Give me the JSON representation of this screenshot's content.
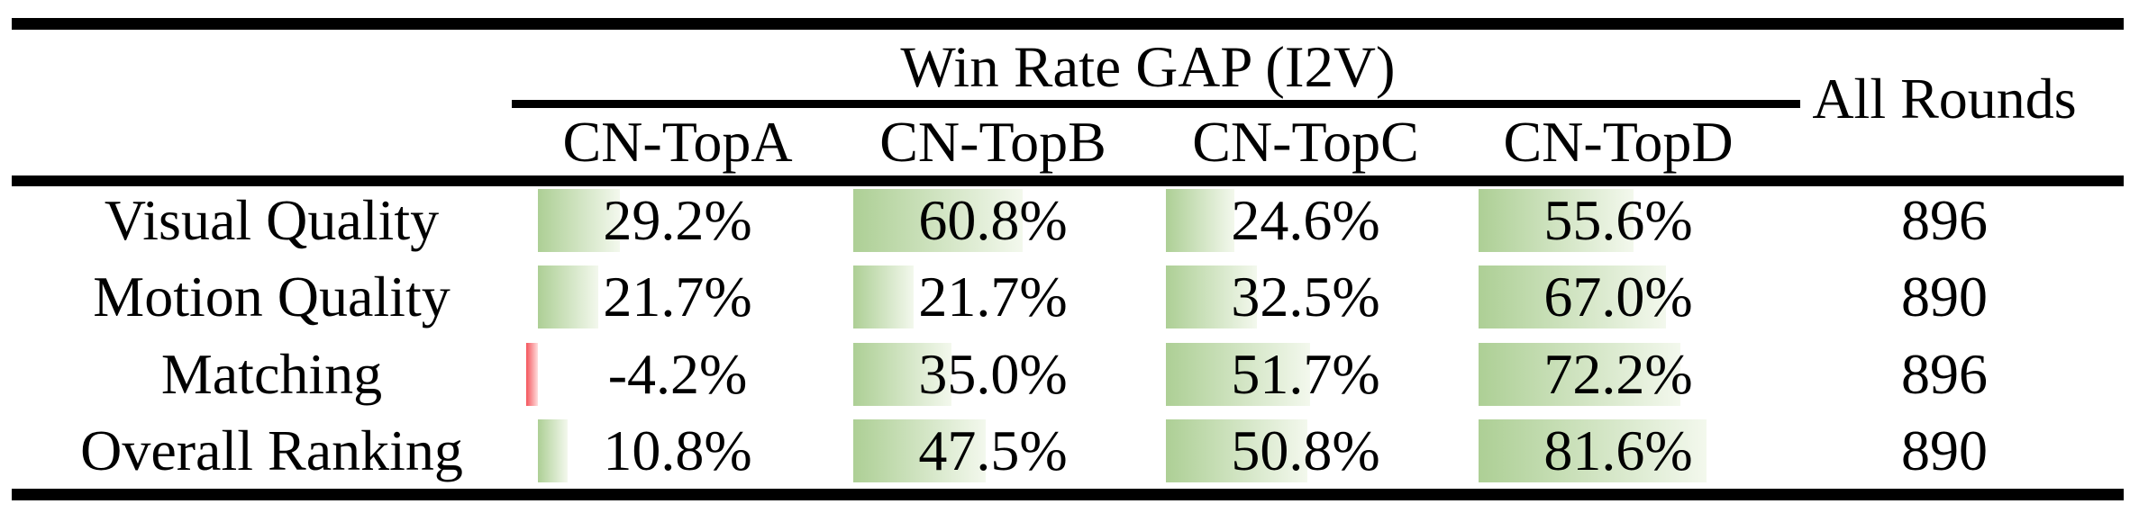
{
  "table": {
    "title": "Win Rate GAP (I2V)",
    "all_rounds_header": "All Rounds",
    "columns": [
      "CN-TopA",
      "CN-TopB",
      "CN-TopC",
      "CN-TopD"
    ],
    "rows": [
      {
        "label": "Visual Quality",
        "values": [
          "29.2%",
          "60.8%",
          "24.6%",
          "55.6%"
        ],
        "all_rounds": "896"
      },
      {
        "label": "Motion Quality",
        "values": [
          "21.7%",
          "21.7%",
          "32.5%",
          "67.0%"
        ],
        "all_rounds": "890"
      },
      {
        "label": "Matching",
        "values": [
          "-4.2%",
          "35.0%",
          "51.7%",
          "72.2%"
        ],
        "all_rounds": "896"
      },
      {
        "label": "Overall Ranking",
        "values": [
          "10.8%",
          "47.5%",
          "50.8%",
          "81.6%"
        ],
        "all_rounds": "890"
      }
    ],
    "bar_colors": {
      "positive_start": "#adcf95",
      "positive_end": "#f3f8ed",
      "negative_start": "#f4555c",
      "negative_end": "#ffdede"
    }
  },
  "chart_data": {
    "type": "table",
    "title": "Win Rate GAP (I2V)",
    "columns": [
      "CN-TopA",
      "CN-TopB",
      "CN-TopC",
      "CN-TopD",
      "All Rounds"
    ],
    "row_labels": [
      "Visual Quality",
      "Motion Quality",
      "Matching",
      "Overall Ranking"
    ],
    "rows": [
      {
        "label": "Visual Quality",
        "win_rate_gap_pct": [
          29.2,
          60.8,
          24.6,
          55.6
        ],
        "all_rounds": 896
      },
      {
        "label": "Motion Quality",
        "win_rate_gap_pct": [
          21.7,
          21.7,
          32.5,
          67.0
        ],
        "all_rounds": 890
      },
      {
        "label": "Matching",
        "win_rate_gap_pct": [
          -4.2,
          35.0,
          51.7,
          72.2
        ],
        "all_rounds": 896
      },
      {
        "label": "Overall Ranking",
        "win_rate_gap_pct": [
          10.8,
          47.5,
          50.8,
          81.6
        ],
        "all_rounds": 890
      }
    ],
    "notes": "Each percentage cell has an in-cell data bar anchored at the cell's left edge; bar length is proportional to the value (full cell width = 100%). Positive bars are green gradients; the single negative value (-4.2%) is drawn as a small red bar extending left of the anchor."
  }
}
